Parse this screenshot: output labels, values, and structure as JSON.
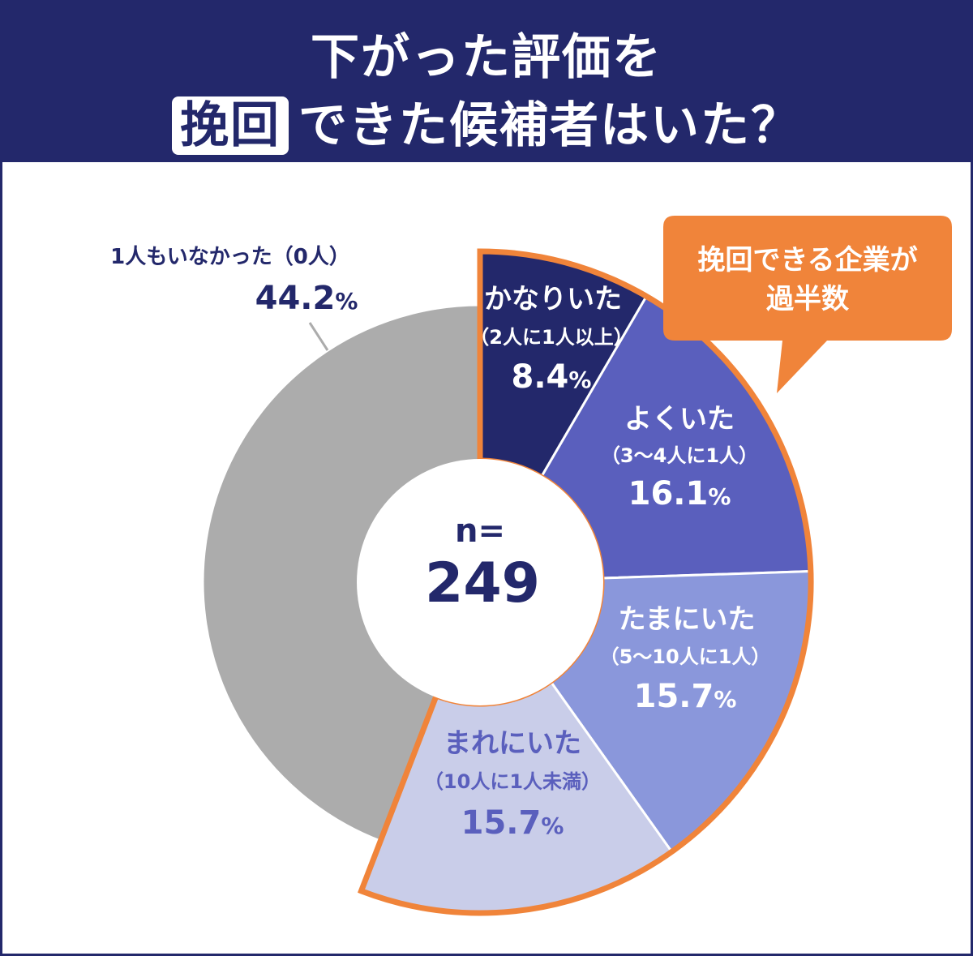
{
  "header": {
    "title_line1": "下がった評価を",
    "title_highlight": "挽回",
    "title_line2_rest": "できた候補者はいた？"
  },
  "callout": {
    "line1": "挽回できる企業が",
    "line2": "過半数"
  },
  "center": {
    "n_label": "n=",
    "n_value": "249"
  },
  "colors": {
    "header_bg": "#23286b",
    "accent_orange": "#f0843a",
    "gray": "#acacac"
  },
  "chart_data": {
    "type": "pie",
    "variant": "donut",
    "title": "",
    "unit": "%",
    "series": [
      {
        "name": "かなりいた",
        "sub": "（2人に1人以上）",
        "pct_main": "8.4",
        "pct_unit": "%",
        "value": 8.4,
        "color": "#23286b",
        "highlighted": true
      },
      {
        "name": "よくいた",
        "sub": "（3〜4人に1人）",
        "pct_main": "16.1",
        "pct_unit": "%",
        "value": 16.1,
        "color": "#5a5fbd",
        "highlighted": true
      },
      {
        "name": "たまにいた",
        "sub": "（5〜10人に1人）",
        "pct_main": "15.7",
        "pct_unit": "%",
        "value": 15.7,
        "color": "#8a97db",
        "highlighted": true
      },
      {
        "name": "まれにいた",
        "sub": "（10人に1人未満）",
        "pct_main": "15.7",
        "pct_unit": "%",
        "value": 15.7,
        "color": "#c9cde9",
        "highlighted": true
      },
      {
        "name": "1人もいなかった（0人）",
        "sub": "",
        "pct_main": "44.2",
        "pct_unit": "%",
        "value": 44.2,
        "color": "#acacac",
        "highlighted": false
      }
    ]
  }
}
